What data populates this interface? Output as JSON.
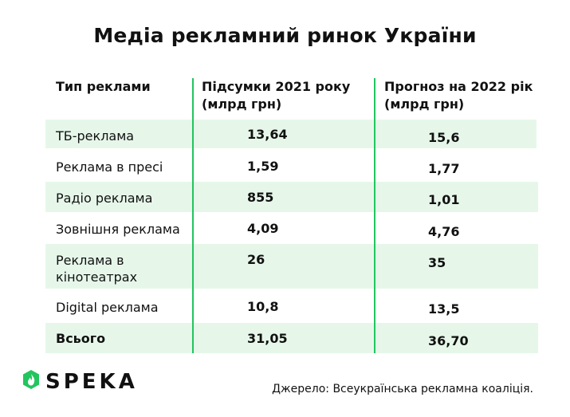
{
  "title": "Медіа рекламний ринок України",
  "headers": {
    "type": "Тип реклами",
    "col2021": "Підсумки 2021 року (млрд грн)",
    "col2022": "Прогноз на 2022 рік (млрд грн)"
  },
  "rows": [
    {
      "type": "ТБ-реклама",
      "v2021": "13,64",
      "v2022": "15,6"
    },
    {
      "type": "Реклама в пресі",
      "v2021": "1,59",
      "v2022": "1,77"
    },
    {
      "type": "Радіо реклама",
      "v2021": "855",
      "v2022": "1,01"
    },
    {
      "type": "Зовнішня реклама",
      "v2021": "4,09",
      "v2022": "4,76"
    },
    {
      "type": "Реклама в кінотеатрах",
      "v2021": "26",
      "v2022": "35"
    },
    {
      "type": "Digital реклама",
      "v2021": "10,8",
      "v2022": "13,5"
    },
    {
      "type": "Всього",
      "v2021": "31,05",
      "v2022": "36,70"
    }
  ],
  "logo_text": "SPEKA",
  "source": "Джерело: Всеукраїнська рекламна коаліція.",
  "colors": {
    "accent": "#22c55e",
    "row_stripe": "#e6f7ea"
  }
}
